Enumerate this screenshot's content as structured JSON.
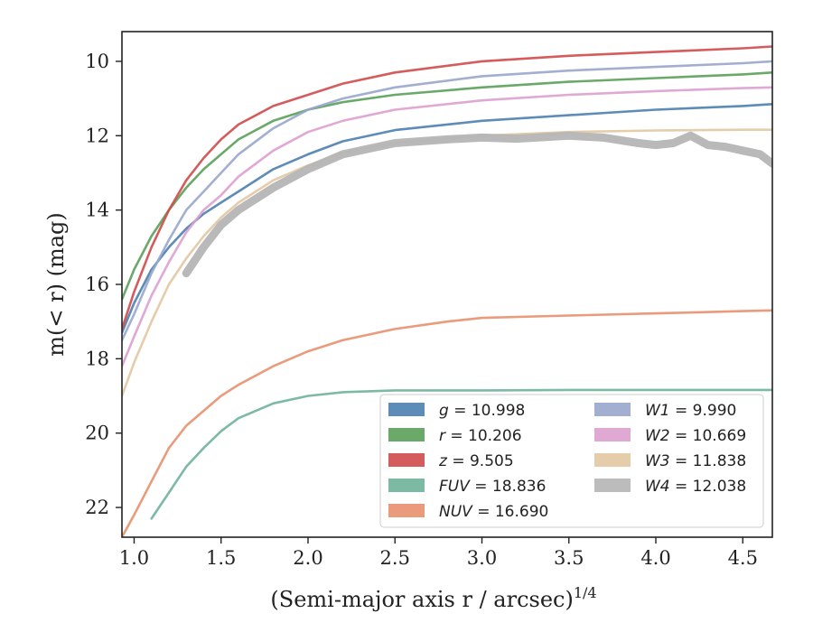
{
  "chart_data": {
    "type": "line",
    "title": "",
    "xlabel": "(Semi-major axis r / arcsec)",
    "xlabel_sup": "1/4",
    "ylabel": "m(< r) (mag)",
    "xlim": [
      0.93,
      4.67
    ],
    "ylim": [
      22.8,
      9.2
    ],
    "y_inverted": true,
    "grid": false,
    "legend_position": "lower-right",
    "xticks": [
      "1.0",
      "1.5",
      "2.0",
      "2.5",
      "3.0",
      "3.5",
      "4.0",
      "4.5"
    ],
    "xtick_values": [
      1.0,
      1.5,
      2.0,
      2.5,
      3.0,
      3.5,
      4.0,
      4.5
    ],
    "yticks": [
      "10",
      "12",
      "14",
      "16",
      "18",
      "20",
      "22"
    ],
    "ytick_values": [
      10,
      12,
      14,
      16,
      18,
      20,
      22
    ],
    "series": [
      {
        "name": "g",
        "legend": "g = 10.998",
        "color": "#4c7fb0",
        "x": [
          0.93,
          1.0,
          1.1,
          1.2,
          1.3,
          1.4,
          1.5,
          1.6,
          1.8,
          2.0,
          2.2,
          2.5,
          3.0,
          3.5,
          4.0,
          4.5,
          4.67
        ],
        "y": [
          17.3,
          16.5,
          15.6,
          15.0,
          14.5,
          14.1,
          13.8,
          13.5,
          12.9,
          12.5,
          12.15,
          11.85,
          11.6,
          11.45,
          11.3,
          11.2,
          11.15
        ]
      },
      {
        "name": "r",
        "legend": "r = 10.206",
        "color": "#5aa05a",
        "x": [
          0.93,
          1.0,
          1.1,
          1.2,
          1.3,
          1.4,
          1.5,
          1.6,
          1.8,
          2.0,
          2.2,
          2.5,
          3.0,
          3.5,
          4.0,
          4.5,
          4.67
        ],
        "y": [
          16.4,
          15.6,
          14.7,
          14.0,
          13.4,
          12.9,
          12.5,
          12.1,
          11.6,
          11.3,
          11.1,
          10.9,
          10.7,
          10.55,
          10.45,
          10.35,
          10.3
        ]
      },
      {
        "name": "z",
        "legend": "z = 9.505",
        "color": "#d04a4a",
        "x": [
          0.93,
          1.0,
          1.1,
          1.2,
          1.3,
          1.4,
          1.5,
          1.6,
          1.8,
          2.0,
          2.2,
          2.5,
          3.0,
          3.5,
          4.0,
          4.5,
          4.67
        ],
        "y": [
          17.2,
          16.2,
          15.0,
          14.0,
          13.2,
          12.6,
          12.1,
          11.7,
          11.2,
          10.9,
          10.6,
          10.3,
          10.0,
          9.85,
          9.75,
          9.65,
          9.6
        ]
      },
      {
        "name": "FUV",
        "legend": "FUV = 18.836",
        "color": "#6fb39a",
        "x": [
          1.1,
          1.2,
          1.3,
          1.4,
          1.5,
          1.6,
          1.8,
          2.0,
          2.2,
          2.5,
          2.8,
          3.0,
          3.5,
          4.0,
          4.5,
          4.67
        ],
        "y": [
          22.3,
          21.6,
          20.9,
          20.4,
          19.95,
          19.6,
          19.2,
          19.0,
          18.9,
          18.85,
          18.85,
          18.85,
          18.84,
          18.84,
          18.84,
          18.84
        ]
      },
      {
        "name": "NUV",
        "legend": "NUV = 16.690",
        "color": "#e8906e",
        "x": [
          0.93,
          1.0,
          1.1,
          1.2,
          1.3,
          1.4,
          1.5,
          1.6,
          1.8,
          2.0,
          2.2,
          2.5,
          2.8,
          3.0,
          3.4,
          4.0,
          4.5,
          4.67
        ],
        "y": [
          22.8,
          22.2,
          21.3,
          20.4,
          19.8,
          19.4,
          19.0,
          18.7,
          18.2,
          17.8,
          17.5,
          17.2,
          17.0,
          16.9,
          16.85,
          16.78,
          16.72,
          16.7
        ]
      },
      {
        "name": "W1",
        "legend": "W1 = 9.990",
        "color": "#98a6cc",
        "x": [
          0.93,
          1.0,
          1.1,
          1.2,
          1.3,
          1.4,
          1.5,
          1.6,
          1.8,
          2.0,
          2.2,
          2.5,
          3.0,
          3.5,
          4.0,
          4.5,
          4.67
        ],
        "y": [
          17.5,
          16.8,
          15.7,
          14.8,
          14.0,
          13.5,
          13.0,
          12.5,
          11.8,
          11.3,
          11.0,
          10.7,
          10.4,
          10.25,
          10.15,
          10.05,
          10.0
        ]
      },
      {
        "name": "W2",
        "legend": "W2 = 10.669",
        "color": "#dda0cf",
        "x": [
          0.93,
          1.0,
          1.1,
          1.2,
          1.3,
          1.4,
          1.5,
          1.6,
          1.8,
          2.0,
          2.2,
          2.5,
          3.0,
          3.5,
          4.0,
          4.5,
          4.67
        ],
        "y": [
          18.2,
          17.4,
          16.3,
          15.4,
          14.6,
          14.0,
          13.6,
          13.1,
          12.4,
          11.9,
          11.6,
          11.3,
          11.05,
          10.9,
          10.8,
          10.72,
          10.7
        ]
      },
      {
        "name": "W3",
        "legend": "W3 = 11.838",
        "color": "#e2c7a2",
        "x": [
          0.93,
          1.0,
          1.1,
          1.2,
          1.3,
          1.4,
          1.5,
          1.6,
          1.8,
          2.0,
          2.2,
          2.5,
          3.0,
          3.5,
          4.0,
          4.5,
          4.67
        ],
        "y": [
          19.0,
          18.1,
          17.0,
          16.0,
          15.3,
          14.7,
          14.2,
          13.8,
          13.2,
          12.8,
          12.45,
          12.2,
          12.0,
          11.9,
          11.86,
          11.84,
          11.84
        ]
      },
      {
        "name": "W4",
        "legend": "W4 = 12.038",
        "color": "#b5b5b5",
        "x": [
          1.3,
          1.4,
          1.5,
          1.6,
          1.8,
          2.0,
          2.2,
          2.5,
          2.8,
          3.0,
          3.2,
          3.5,
          3.7,
          3.9,
          4.0,
          4.1,
          4.2,
          4.3,
          4.4,
          4.5,
          4.6,
          4.67
        ],
        "y": [
          15.7,
          15.0,
          14.4,
          14.0,
          13.4,
          12.9,
          12.5,
          12.2,
          12.1,
          12.05,
          12.08,
          12.0,
          12.05,
          12.2,
          12.25,
          12.2,
          12.0,
          12.25,
          12.3,
          12.4,
          12.5,
          12.75
        ]
      }
    ]
  }
}
